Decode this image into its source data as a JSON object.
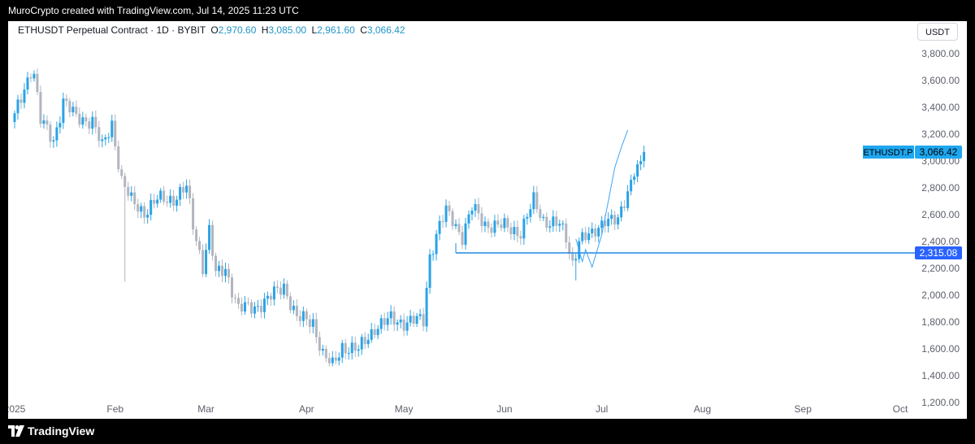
{
  "header": {
    "caption": "MuroCrypto created with TradingView.com, Jul 14, 2025 11:23 UTC"
  },
  "legend": {
    "symbol": "ETHUSDT Perpetual Contract · 1D · BYBIT",
    "o_key": "O",
    "o_val": "2,970.60",
    "h_key": "H",
    "h_val": "3,085.00",
    "l_key": "L",
    "l_val": "2,961.60",
    "c_key": "C",
    "c_val": "3,066.42"
  },
  "unit_button": "USDT",
  "footer": {
    "brand": "TradingView"
  },
  "colors": {
    "up": "#2aa3e6",
    "down": "#b2b5be",
    "line": "#1e88e5",
    "label": "#2962ff"
  },
  "chart_data": {
    "type": "candlestick",
    "symbol": "ETHUSDT.P",
    "y_axis": {
      "ticks": [
        1200,
        1400,
        1600,
        1800,
        2000,
        2200,
        2400,
        2600,
        2800,
        3000,
        3200,
        3400,
        3600,
        3800
      ],
      "tick_labels": [
        "1,200.00",
        "1,400.00",
        "1,600.00",
        "1,800.00",
        "2,000.00",
        "2,200.00",
        "2,400.00",
        "2,600.00",
        "2,800.00",
        "3,000.00",
        "3,200.00",
        "3,400.00",
        "3,600.00",
        "3,800.00"
      ],
      "range": [
        1080,
        3920
      ]
    },
    "x_axis": {
      "labels": [
        "2025",
        "Feb",
        "Mar",
        "Apr",
        "May",
        "Jun",
        "Jul",
        "Aug",
        "Sep",
        "Oct"
      ],
      "label_days": [
        0,
        31,
        59,
        90,
        120,
        151,
        181,
        212,
        243,
        273
      ],
      "range_days": [
        -2,
        276
      ]
    },
    "first_date": "2025-01-01",
    "last_price": {
      "label": "ETHUSDT.P",
      "value": 3066.42,
      "text": "3,066.42"
    },
    "horizontal_line": {
      "value": 2315.08,
      "text": "2,315.08",
      "start": "2025-05-17"
    },
    "projection_path": [
      {
        "date": "2025-06-23",
        "price": 2420
      },
      {
        "date": "2025-06-25",
        "price": 2250
      },
      {
        "date": "2025-06-26",
        "price": 2340
      },
      {
        "date": "2025-06-28",
        "price": 2210
      },
      {
        "date": "2025-07-01",
        "price": 2450
      },
      {
        "date": "2025-07-03",
        "price": 2700
      },
      {
        "date": "2025-07-05",
        "price": 2950
      },
      {
        "date": "2025-07-07",
        "price": 3100
      },
      {
        "date": "2025-07-09",
        "price": 3230
      }
    ],
    "price_keyframes": [
      {
        "date": "2025-01-01",
        "price": 3330
      },
      {
        "date": "2025-01-06",
        "price": 3680
      },
      {
        "date": "2025-01-07",
        "price": 3650
      },
      {
        "date": "2025-01-09",
        "price": 3300
      },
      {
        "date": "2025-01-13",
        "price": 3150
      },
      {
        "date": "2025-01-16",
        "price": 3450
      },
      {
        "date": "2025-01-20",
        "price": 3320
      },
      {
        "date": "2025-01-25",
        "price": 3300
      },
      {
        "date": "2025-01-28",
        "price": 3100
      },
      {
        "date": "2025-01-31",
        "price": 3280
      },
      {
        "date": "2025-02-03",
        "price": 2850
      },
      {
        "date": "2025-02-06",
        "price": 2700
      },
      {
        "date": "2025-02-10",
        "price": 2620
      },
      {
        "date": "2025-02-14",
        "price": 2710
      },
      {
        "date": "2025-02-19",
        "price": 2720
      },
      {
        "date": "2025-02-23",
        "price": 2800
      },
      {
        "date": "2025-02-25",
        "price": 2520
      },
      {
        "date": "2025-02-28",
        "price": 2220
      },
      {
        "date": "2025-03-02",
        "price": 2480
      },
      {
        "date": "2025-03-04",
        "price": 2150
      },
      {
        "date": "2025-03-07",
        "price": 2200
      },
      {
        "date": "2025-03-11",
        "price": 1900
      },
      {
        "date": "2025-03-16",
        "price": 1910
      },
      {
        "date": "2025-03-20",
        "price": 1970
      },
      {
        "date": "2025-03-25",
        "price": 2070
      },
      {
        "date": "2025-03-29",
        "price": 1830
      },
      {
        "date": "2025-04-03",
        "price": 1800
      },
      {
        "date": "2025-04-06",
        "price": 1560
      },
      {
        "date": "2025-04-09",
        "price": 1470
      },
      {
        "date": "2025-04-12",
        "price": 1620
      },
      {
        "date": "2025-04-17",
        "price": 1590
      },
      {
        "date": "2025-04-22",
        "price": 1760
      },
      {
        "date": "2025-04-27",
        "price": 1820
      },
      {
        "date": "2025-05-01",
        "price": 1800
      },
      {
        "date": "2025-05-04",
        "price": 1810
      },
      {
        "date": "2025-05-07",
        "price": 1810
      },
      {
        "date": "2025-05-09",
        "price": 2300
      },
      {
        "date": "2025-05-12",
        "price": 2520
      },
      {
        "date": "2025-05-14",
        "price": 2620
      },
      {
        "date": "2025-05-16",
        "price": 2560
      },
      {
        "date": "2025-05-19",
        "price": 2440
      },
      {
        "date": "2025-05-22",
        "price": 2650
      },
      {
        "date": "2025-05-26",
        "price": 2530
      },
      {
        "date": "2025-06-01",
        "price": 2510
      },
      {
        "date": "2025-06-06",
        "price": 2470
      },
      {
        "date": "2025-06-10",
        "price": 2700
      },
      {
        "date": "2025-06-13",
        "price": 2560
      },
      {
        "date": "2025-06-16",
        "price": 2540
      },
      {
        "date": "2025-06-18",
        "price": 2520
      },
      {
        "date": "2025-06-20",
        "price": 2420
      },
      {
        "date": "2025-06-22",
        "price": 2240
      },
      {
        "date": "2025-06-24",
        "price": 2420
      },
      {
        "date": "2025-06-28",
        "price": 2440
      },
      {
        "date": "2025-07-02",
        "price": 2580
      },
      {
        "date": "2025-07-06",
        "price": 2540
      },
      {
        "date": "2025-07-09",
        "price": 2770
      },
      {
        "date": "2025-07-11",
        "price": 2950
      },
      {
        "date": "2025-07-13",
        "price": 2970
      },
      {
        "date": "2025-07-14",
        "price": 3066
      }
    ]
  }
}
